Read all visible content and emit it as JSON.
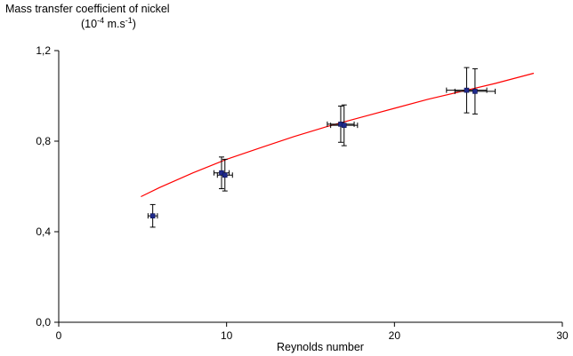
{
  "chart_data": {
    "type": "scatter",
    "title": "",
    "ylabel_title": "Mass transfer coefficient of nickel",
    "ylabel_unit": {
      "base": "(10",
      "exp1": "-4",
      "mid": " m.s",
      "exp2": "-1",
      "end": ")"
    },
    "xlabel": "Reynolds number",
    "xlim": [
      0,
      30
    ],
    "ylim": [
      0,
      1.2
    ],
    "xticks": [
      0,
      10,
      20,
      30
    ],
    "xtick_labels": [
      "0",
      "10",
      "20",
      "30"
    ],
    "yticks": [
      0,
      0.4,
      0.8,
      1.2
    ],
    "ytick_labels": [
      "0,0",
      "0,4",
      "0,8",
      "1,2"
    ],
    "grid": false,
    "legend": "none",
    "marker_color": "#1f2a8c",
    "curve_color": "#ff0000",
    "points": [
      {
        "x": 5.6,
        "y": 0.47,
        "xerr": 0.28,
        "yerr": 0.05
      },
      {
        "x": 9.7,
        "y": 0.66,
        "xerr": 0.45,
        "yerr": 0.07
      },
      {
        "x": 9.9,
        "y": 0.65,
        "xerr": 0.45,
        "yerr": 0.07
      },
      {
        "x": 16.8,
        "y": 0.875,
        "xerr": 0.8,
        "yerr": 0.08
      },
      {
        "x": 17.0,
        "y": 0.87,
        "xerr": 0.8,
        "yerr": 0.09
      },
      {
        "x": 24.3,
        "y": 1.025,
        "xerr": 1.2,
        "yerr": 0.1
      },
      {
        "x": 24.8,
        "y": 1.02,
        "xerr": 1.2,
        "yerr": 0.1
      }
    ],
    "fit_curve": {
      "x": [
        4.9,
        6,
        8,
        10,
        12,
        14,
        16,
        18,
        20,
        22,
        24,
        26,
        28.3
      ],
      "y": [
        0.555,
        0.595,
        0.66,
        0.72,
        0.77,
        0.82,
        0.865,
        0.905,
        0.945,
        0.985,
        1.02,
        1.055,
        1.1
      ]
    }
  }
}
